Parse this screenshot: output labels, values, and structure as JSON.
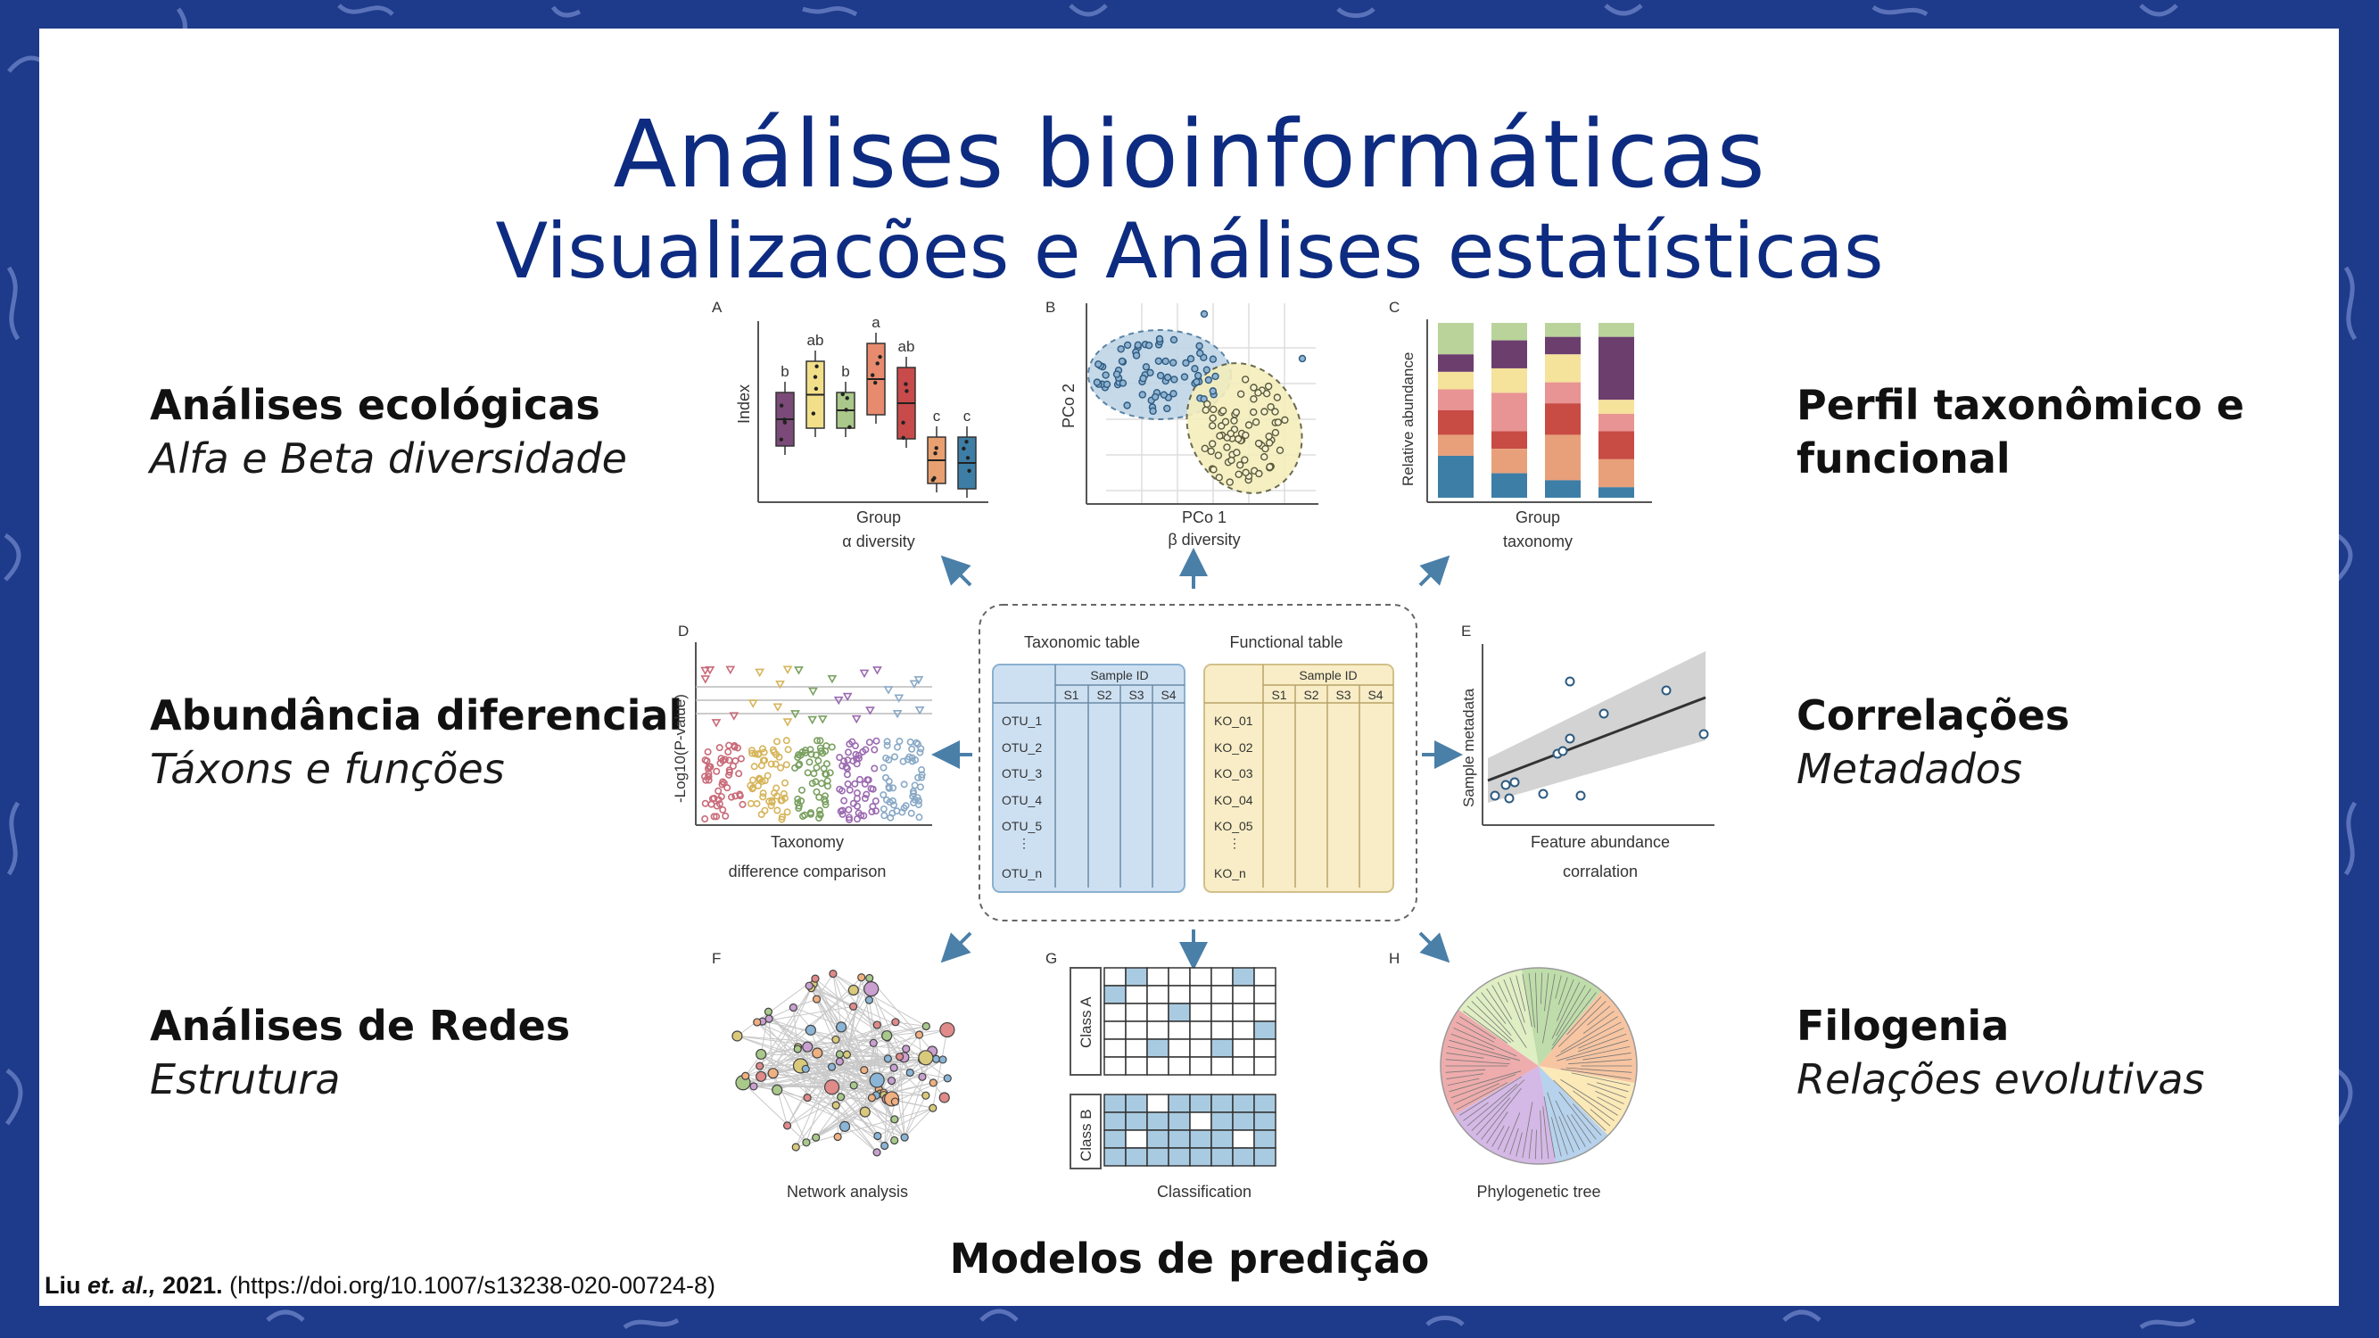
{
  "title": {
    "main": "Análises bioinformáticas",
    "subtitle": "Visualizacões e Análises estatísticas"
  },
  "left_labels": [
    {
      "heading": "Análises ecológicas",
      "sub": "Alfa e Beta diversidade"
    },
    {
      "heading": "Abundância diferencial",
      "sub": "Táxons e funções"
    },
    {
      "heading": "Análises de Redes",
      "sub": "Estrutura"
    }
  ],
  "right_labels": [
    {
      "heading_line1": "Perfil taxonômico e",
      "heading_line2": "funcional"
    },
    {
      "heading": "Correlações",
      "sub": "Metadados"
    },
    {
      "heading": "Filogenia",
      "sub": "Relações evolutivas"
    }
  ],
  "bottom_label": "Modelos de predição",
  "citation": {
    "authors": "Liu",
    "etal": "et. al.,",
    "year": "2021.",
    "doi": "(https://doi.org/10.1007/s13238-020-00724-8)"
  },
  "figure": {
    "panel_a": {
      "letter": "A",
      "ylabel": "Index",
      "xlabel": "Group",
      "caption": "α diversity",
      "sig_letters": [
        "b",
        "ab",
        "b",
        "a",
        "ab",
        "c",
        "c"
      ],
      "box_colors": [
        "#7b4a78",
        "#f2df8a",
        "#a9c88a",
        "#e88a6e",
        "#c94a4a",
        "#e8a070",
        "#3d7ea6"
      ]
    },
    "panel_b": {
      "letter": "B",
      "ylabel": "PCo 2",
      "xlabel": "PCo 1",
      "caption": "β diversity"
    },
    "panel_c": {
      "letter": "C",
      "ylabel": "Relative abundance",
      "xlabel": "Group",
      "caption": "taxonomy",
      "colors": [
        "#b9d39a",
        "#6b3e6e",
        "#f5e29b",
        "#e89494",
        "#c84b44",
        "#e8a07a",
        "#3d7ea6"
      ]
    },
    "panel_d": {
      "letter": "D",
      "ylabel": "-Log10(P-value)",
      "xlabel": "Taxonomy",
      "caption": "difference comparison"
    },
    "panel_e": {
      "letter": "E",
      "ylabel": "Sample metadata",
      "xlabel": "Feature abundance",
      "caption": "corralation"
    },
    "panel_f": {
      "letter": "F",
      "caption": "Network analysis"
    },
    "panel_g": {
      "letter": "G",
      "caption": "Classification",
      "class_a": "Class A",
      "class_b": "Class B"
    },
    "panel_h": {
      "letter": "H",
      "caption": "Phylogenetic tree"
    },
    "center": {
      "tax_title": "Taxonomic table",
      "func_title": "Functional table",
      "sample_id": "Sample ID",
      "samples": [
        "S1",
        "S2",
        "S3",
        "S4"
      ],
      "otu_rows": [
        "OTU_1",
        "OTU_2",
        "OTU_3",
        "OTU_4",
        "OTU_5",
        "OTU_n"
      ],
      "ko_rows": [
        "KO_01",
        "KO_02",
        "KO_03",
        "KO_04",
        "KO_05",
        "KO_n"
      ]
    }
  }
}
